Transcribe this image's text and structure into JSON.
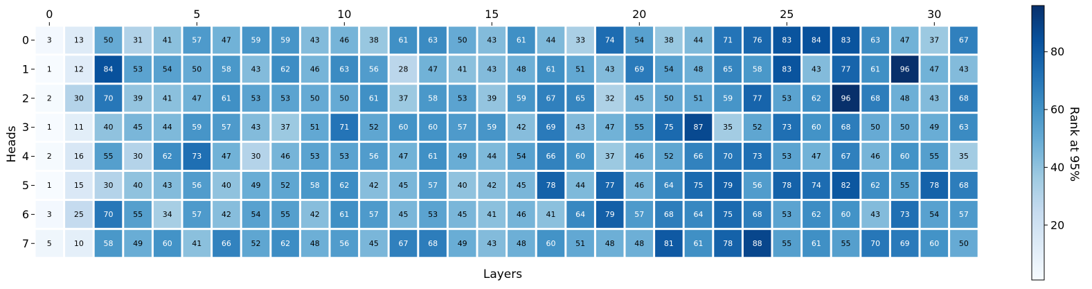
{
  "chart_data": {
    "type": "heatmap",
    "xlabel": "Layers",
    "ylabel": "Heads",
    "x_tick_labels": [
      "0",
      "5",
      "10",
      "15",
      "20",
      "25",
      "30"
    ],
    "x_tick_values": [
      0,
      5,
      10,
      15,
      20,
      25,
      30
    ],
    "x_axis_position": "top",
    "rows": [
      "0",
      "1",
      "2",
      "3",
      "4",
      "5",
      "6",
      "7"
    ],
    "columns": [
      0,
      1,
      2,
      3,
      4,
      5,
      6,
      7,
      8,
      9,
      10,
      11,
      12,
      13,
      14,
      15,
      16,
      17,
      18,
      19,
      20,
      21,
      22,
      23,
      24,
      25,
      26,
      27,
      28,
      29,
      30,
      31
    ],
    "values": [
      [
        3,
        13,
        50,
        31,
        41,
        57,
        47,
        59,
        59,
        43,
        46,
        38,
        61,
        63,
        50,
        43,
        61,
        44,
        33,
        74,
        54,
        38,
        44,
        71,
        76,
        83,
        84,
        83,
        63,
        47,
        37,
        67
      ],
      [
        1,
        12,
        84,
        53,
        54,
        50,
        58,
        43,
        62,
        46,
        63,
        56,
        28,
        47,
        41,
        43,
        48,
        61,
        51,
        43,
        69,
        54,
        48,
        65,
        58,
        83,
        43,
        77,
        61,
        96,
        47,
        43
      ],
      [
        2,
        30,
        70,
        39,
        41,
        47,
        61,
        53,
        53,
        50,
        50,
        61,
        37,
        58,
        53,
        39,
        59,
        67,
        65,
        32,
        45,
        50,
        51,
        59,
        77,
        53,
        62,
        96,
        68,
        48,
        43,
        68
      ],
      [
        1,
        11,
        40,
        45,
        44,
        59,
        57,
        43,
        37,
        51,
        71,
        52,
        60,
        60,
        57,
        59,
        42,
        69,
        43,
        47,
        55,
        75,
        87,
        35,
        52,
        73,
        60,
        68,
        50,
        50,
        49,
        63
      ],
      [
        2,
        16,
        55,
        30,
        62,
        73,
        47,
        30,
        46,
        53,
        53,
        56,
        47,
        61,
        49,
        44,
        54,
        66,
        60,
        37,
        46,
        52,
        66,
        70,
        73,
        53,
        47,
        67,
        46,
        60,
        55,
        35
      ],
      [
        1,
        15,
        30,
        40,
        43,
        56,
        40,
        49,
        52,
        58,
        62,
        42,
        45,
        57,
        40,
        42,
        45,
        78,
        44,
        77,
        46,
        64,
        75,
        79,
        56,
        78,
        74,
        82,
        62,
        55,
        78,
        68
      ],
      [
        3,
        25,
        70,
        55,
        34,
        57,
        42,
        54,
        55,
        42,
        61,
        57,
        45,
        53,
        45,
        41,
        46,
        41,
        64,
        79,
        57,
        68,
        64,
        75,
        68,
        53,
        62,
        60,
        43,
        73,
        54,
        57
      ],
      [
        5,
        10,
        58,
        49,
        60,
        41,
        66,
        52,
        62,
        48,
        56,
        45,
        67,
        68,
        49,
        43,
        48,
        60,
        51,
        48,
        48,
        81,
        61,
        78,
        88,
        55,
        61,
        55,
        70,
        69,
        60,
        50
      ]
    ],
    "colormap": "Blues",
    "vmin": 1,
    "vmax": 96,
    "colorbar": {
      "label": "Rank at 95%",
      "tick_labels": [
        "20",
        "40",
        "60",
        "80"
      ],
      "tick_values": [
        20,
        40,
        60,
        80
      ]
    },
    "grid": false,
    "cell_separator_color": "#ffffff"
  }
}
